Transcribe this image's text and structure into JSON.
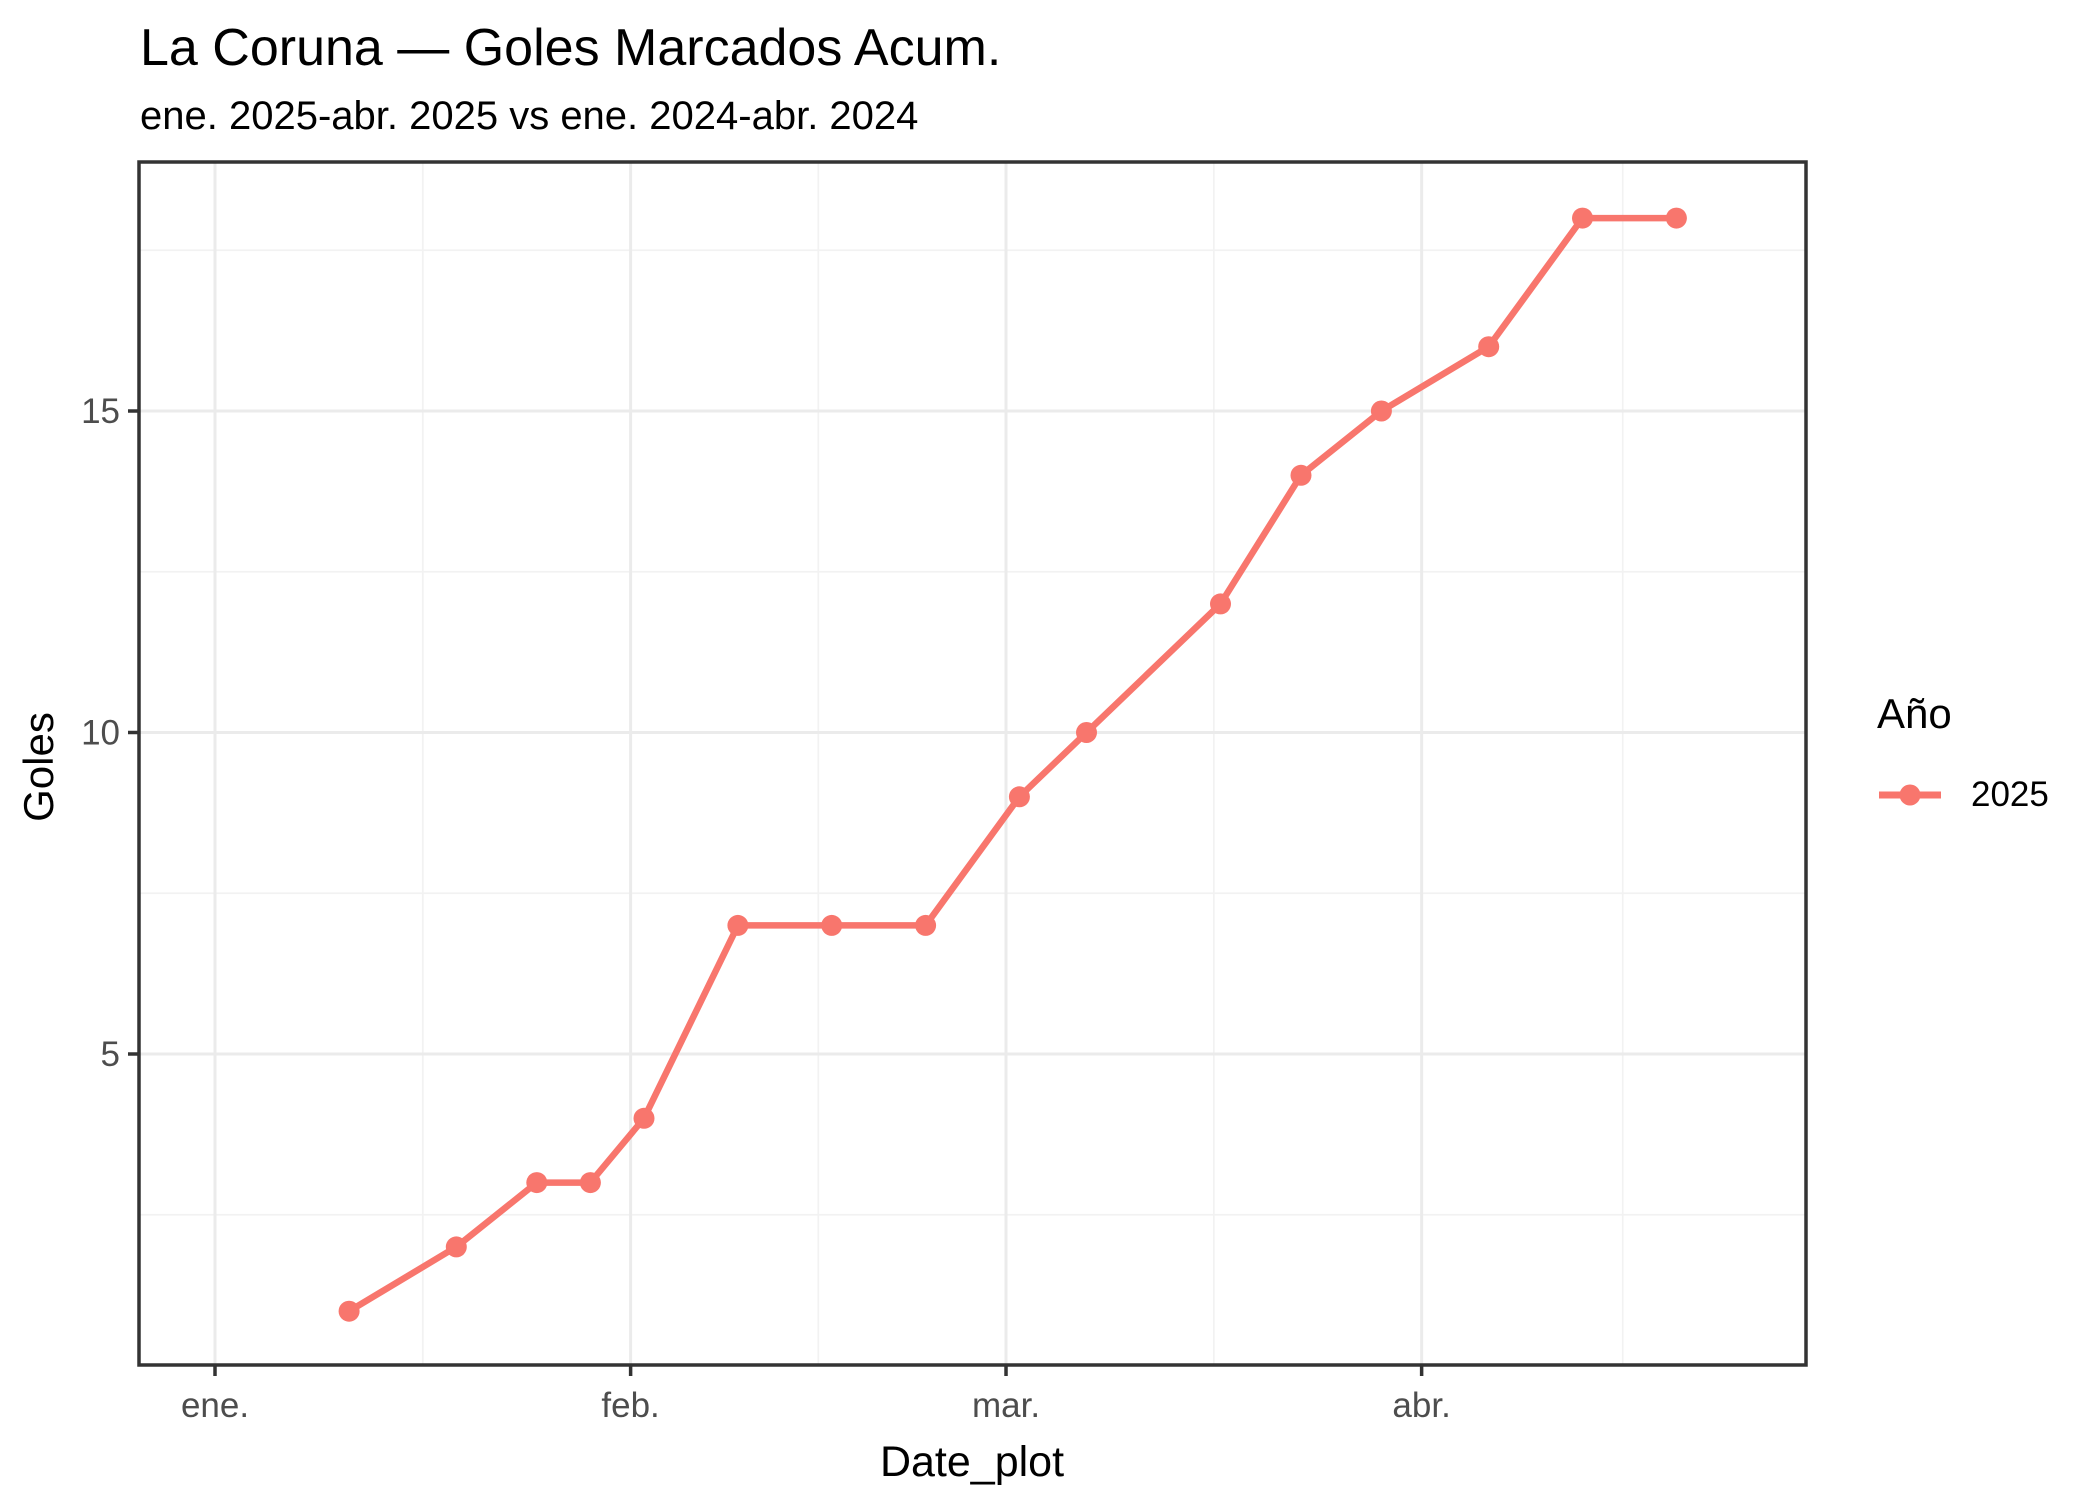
{
  "figure": {
    "title": "La Coruna — Goles Marcados Acum.",
    "subtitle": "ene. 2025-abr. 2025 vs ene. 2024-abr. 2024"
  },
  "chart_data": {
    "type": "line",
    "title": "La Coruna — Goles Marcados Acum.",
    "subtitle": "ene. 2025-abr. 2025 vs ene. 2024-abr. 2024",
    "xlabel": "Date_plot",
    "ylabel": "Goles",
    "legend_title": "Año",
    "legend_position": "right",
    "grid": "major+minor",
    "x_ticks": [
      {
        "label": "ene.",
        "date": "2025-01-01"
      },
      {
        "label": "feb.",
        "date": "2025-02-01"
      },
      {
        "label": "mar.",
        "date": "2025-03-01"
      },
      {
        "label": "abr.",
        "date": "2025-04-01"
      }
    ],
    "y_ticks": [
      5,
      10,
      15
    ],
    "ylim": [
      0.15,
      18.87
    ],
    "xlim": [
      "2024-12-26",
      "2025-04-29"
    ],
    "series": [
      {
        "name": "2025",
        "color": "#F8766D",
        "x": [
          "2025-01-11",
          "2025-01-19",
          "2025-01-25",
          "2025-01-29",
          "2025-02-02",
          "2025-02-09",
          "2025-02-16",
          "2025-02-23",
          "2025-03-02",
          "2025-03-07",
          "2025-03-17",
          "2025-03-23",
          "2025-03-29",
          "2025-04-06",
          "2025-04-13",
          "2025-04-20"
        ],
        "values": [
          1,
          2,
          3,
          3,
          4,
          7,
          7,
          7,
          9,
          10,
          12,
          14,
          15,
          16,
          18,
          18
        ]
      }
    ]
  },
  "legend": {
    "title": "Año",
    "items": [
      {
        "label": "2025",
        "color": "#F8766D"
      }
    ]
  },
  "colors": {
    "series": "#F8766D",
    "grid_major": "#EBEBEB",
    "grid_minor": "#F2F2F2",
    "panel_border": "#333333",
    "tick_mark": "#333333",
    "tick_text": "#4D4D4D",
    "text": "#000000",
    "background": "#FFFFFF"
  }
}
